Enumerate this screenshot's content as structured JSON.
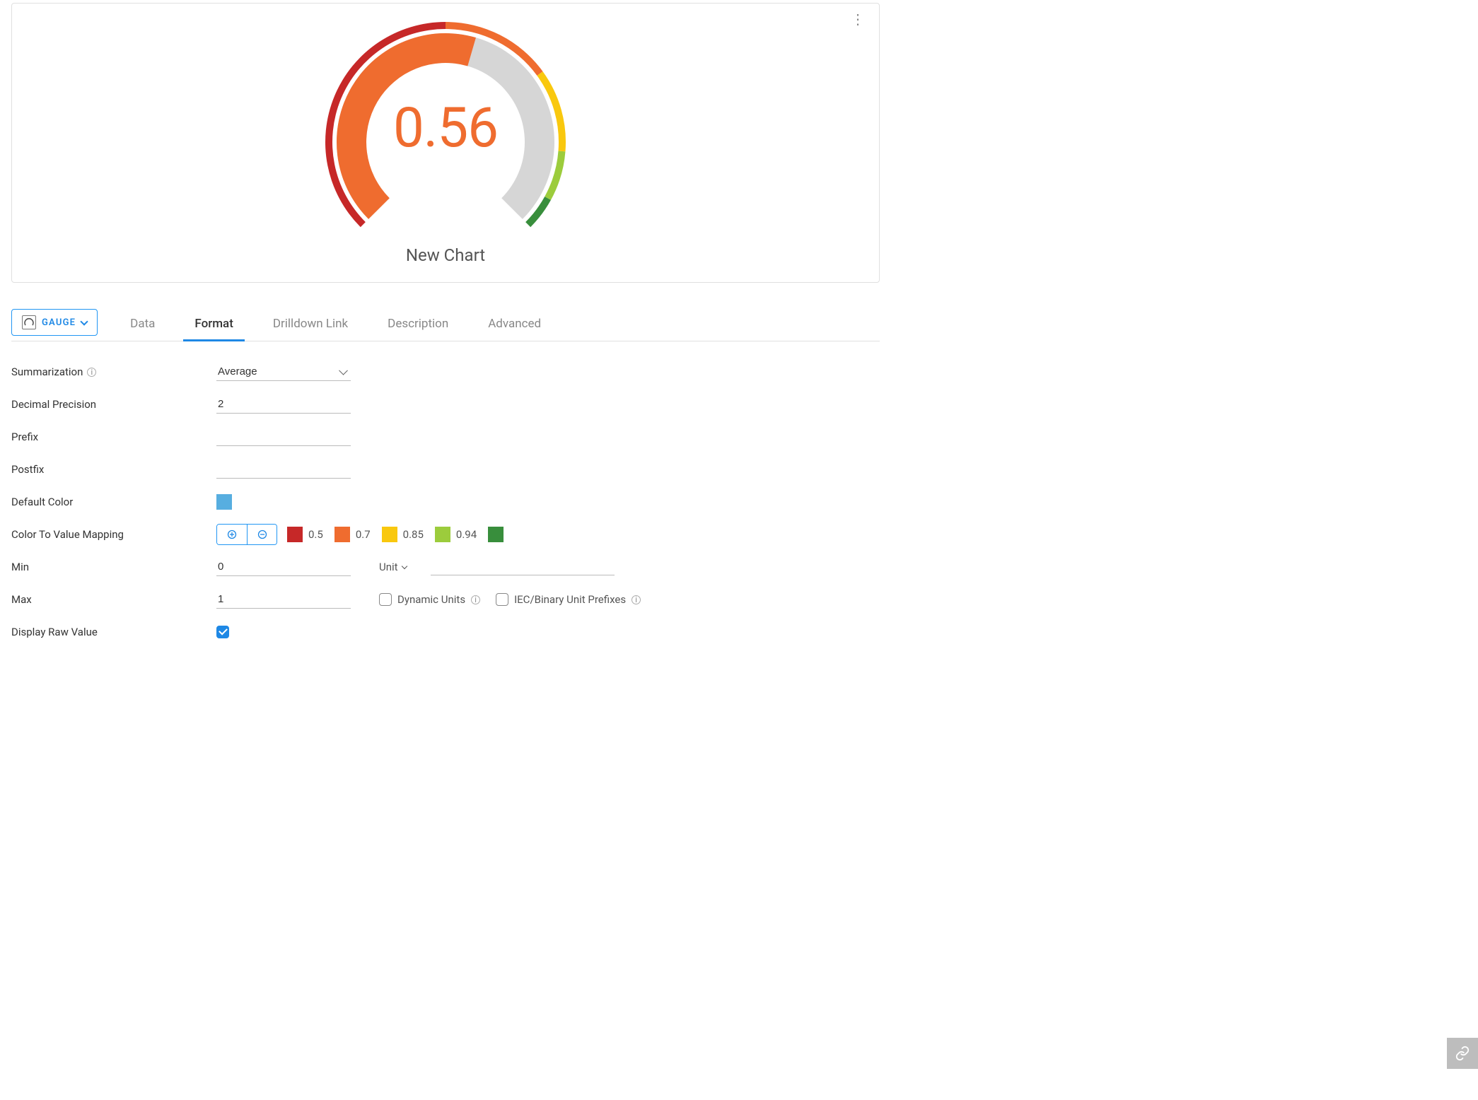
{
  "chart": {
    "title": "New Chart",
    "value_display": "0.56",
    "value_numeric": 0.56,
    "value_color": "#ef6c2f",
    "gauge": {
      "type": "gauge",
      "start_angle_deg": 225,
      "end_angle_deg": -45,
      "outer_ring_width": 10,
      "fill_ring_width": 42,
      "background_color": "#ffffff",
      "track_color": "#d6d6d6",
      "segments": [
        {
          "from": 0.0,
          "to": 0.5,
          "color": "#c62828"
        },
        {
          "from": 0.5,
          "to": 0.7,
          "color": "#ef6c2f"
        },
        {
          "from": 0.7,
          "to": 0.85,
          "color": "#f9c80e"
        },
        {
          "from": 0.85,
          "to": 0.94,
          "color": "#9ccc3c"
        },
        {
          "from": 0.94,
          "to": 1.0,
          "color": "#388e3c"
        }
      ]
    }
  },
  "chart_type_selector": {
    "label": "GAUGE"
  },
  "tabs": [
    {
      "id": "data",
      "label": "Data",
      "active": false
    },
    {
      "id": "format",
      "label": "Format",
      "active": true
    },
    {
      "id": "drilldown",
      "label": "Drilldown Link",
      "active": false
    },
    {
      "id": "description",
      "label": "Description",
      "active": false
    },
    {
      "id": "advanced",
      "label": "Advanced",
      "active": false
    }
  ],
  "format": {
    "labels": {
      "summarization": "Summarization",
      "decimal_precision": "Decimal Precision",
      "prefix": "Prefix",
      "postfix": "Postfix",
      "default_color": "Default Color",
      "color_mapping": "Color To Value Mapping",
      "min": "Min",
      "max": "Max",
      "display_raw": "Display Raw Value",
      "unit": "Unit",
      "dynamic_units": "Dynamic Units",
      "iec_prefixes": "IEC/Binary Unit Prefixes"
    },
    "summarization_value": "Average",
    "decimal_precision_value": "2",
    "prefix_value": "",
    "postfix_value": "",
    "default_color": "#57aee0",
    "color_mapping": [
      {
        "color": "#c62828",
        "label": "0.5"
      },
      {
        "color": "#ef6c2f",
        "label": "0.7"
      },
      {
        "color": "#f9c80e",
        "label": "0.85"
      },
      {
        "color": "#9ccc3c",
        "label": "0.94"
      },
      {
        "color": "#388e3c",
        "label": ""
      }
    ],
    "min_value": "0",
    "max_value": "1",
    "unit_value": "",
    "dynamic_units_checked": false,
    "iec_prefixes_checked": false,
    "display_raw_checked": true
  }
}
